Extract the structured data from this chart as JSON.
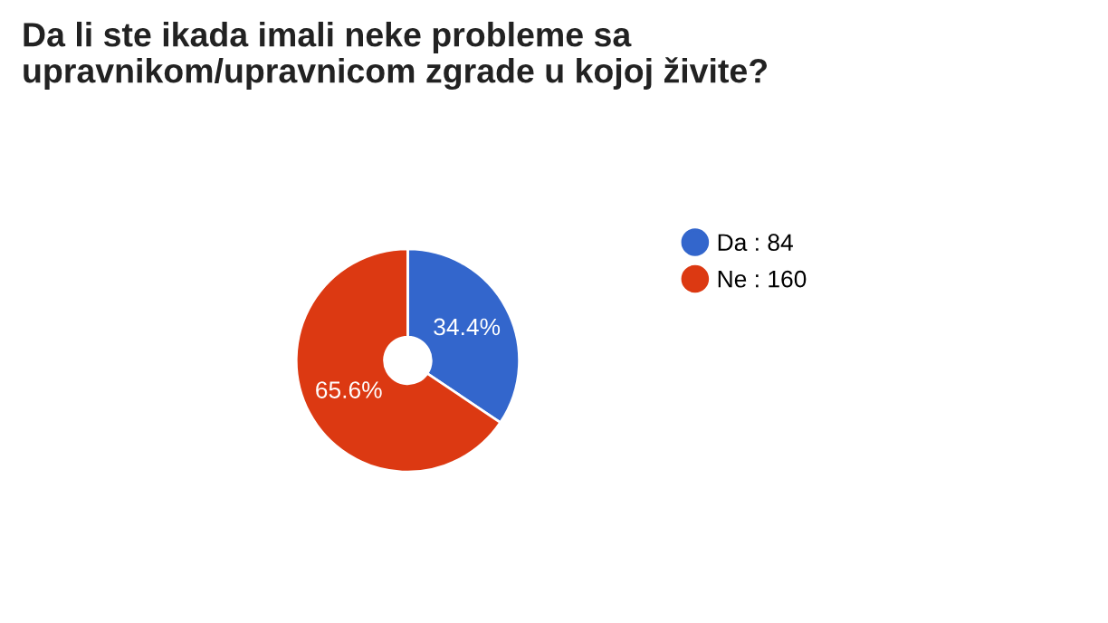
{
  "chart_data": {
    "type": "donut",
    "title": "Da li ste ikada imali neke probleme sa\nupravnikom/upravnicom zgrade u kojoj živite?",
    "categories": [
      "Da : 84",
      "Ne : 160"
    ],
    "values": [
      34.4,
      65.6
    ],
    "colors": [
      "#3366cc",
      "#dc3912"
    ],
    "value_labels": [
      "34.4%",
      "65.6%"
    ],
    "legend": "right"
  }
}
